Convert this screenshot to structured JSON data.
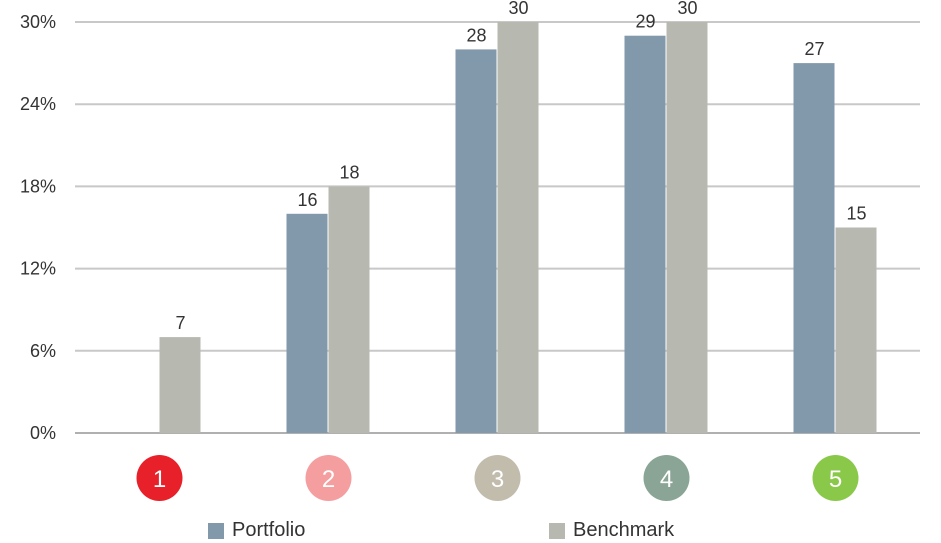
{
  "chart_data": {
    "type": "bar",
    "categories": [
      "1",
      "2",
      "3",
      "4",
      "5"
    ],
    "category_colors": [
      "#e8202a",
      "#f49ea0",
      "#c2bcad",
      "#8aa595",
      "#8ac84a"
    ],
    "series": [
      {
        "name": "Portfolio",
        "color": "#8299ab",
        "values": [
          null,
          16,
          28,
          29,
          27
        ]
      },
      {
        "name": "Benchmark",
        "color": "#b7b9b0",
        "values": [
          7,
          18,
          30,
          30,
          15
        ]
      }
    ],
    "ylim": [
      0,
      30
    ],
    "yticks": [
      0,
      6,
      12,
      18,
      24,
      30
    ],
    "ytick_labels": [
      "0%",
      "6%",
      "12%",
      "18%",
      "24%",
      "30%"
    ],
    "grid": true,
    "legend_position": "bottom",
    "title": "",
    "xlabel": "",
    "ylabel": ""
  },
  "colors": {
    "grid": "#c8c8c8",
    "axis": "#b0b0b0",
    "text": "#333333"
  }
}
